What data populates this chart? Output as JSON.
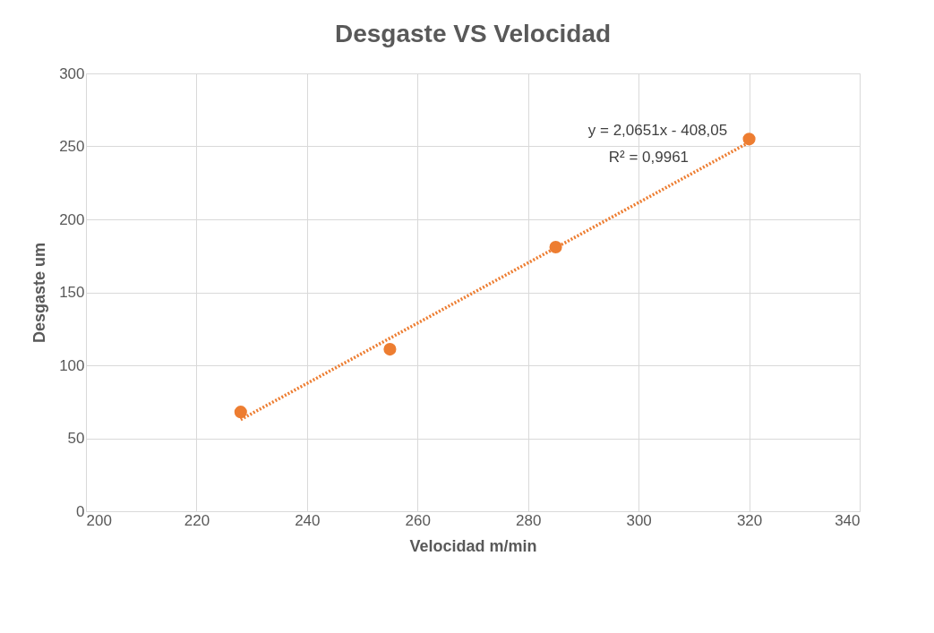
{
  "chart_data": {
    "type": "scatter",
    "title": "Desgaste VS Velocidad",
    "xlabel": "Velocidad m/min",
    "ylabel": "Desgaste um",
    "xlim": [
      200,
      340
    ],
    "xticks": [
      200,
      220,
      240,
      260,
      280,
      300,
      320,
      340
    ],
    "ylim": [
      0,
      300
    ],
    "yticks": [
      0,
      50,
      100,
      150,
      200,
      250,
      300
    ],
    "grid": true,
    "legend": false,
    "marker": "circle",
    "series": [
      {
        "color": "#ed7d31",
        "x": [
          228,
          255,
          285,
          320
        ],
        "values": [
          68,
          111,
          181,
          255
        ]
      },
      {
        "type": "line",
        "line_style": "dotted",
        "marker": "none",
        "color": "#ed7d31",
        "x": [
          228,
          320
        ],
        "values": [
          62.8,
          252.8
        ]
      }
    ],
    "annotations": [
      "y = 2,0651x - 408,05",
      "R² = 0,9961"
    ]
  }
}
